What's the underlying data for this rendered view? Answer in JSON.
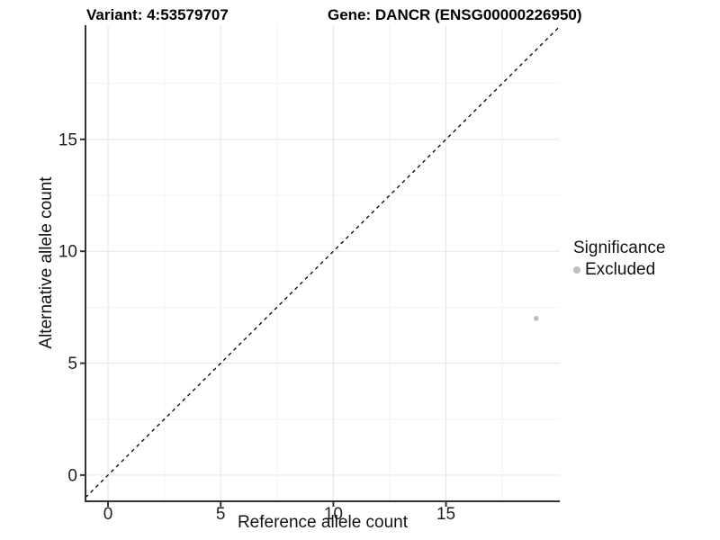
{
  "chart_data": {
    "type": "scatter",
    "title_left": "Variant: 4:53579707",
    "title_right": "Gene: DANCR (ENSG00000226950)",
    "xlabel": "Reference allele count",
    "ylabel": "Alternative allele count",
    "legend_title": "Significance",
    "legend_position": "right",
    "x_ticks": [
      0,
      5,
      10,
      15
    ],
    "y_ticks": [
      0,
      5,
      10,
      15
    ],
    "x_minor_ticks": [
      2.5,
      7.5,
      12.5,
      17.5
    ],
    "y_minor_ticks": [
      2.5,
      7.5,
      12.5,
      17.5
    ],
    "xlim": [
      -1.0,
      20.05
    ],
    "ylim": [
      -1.17,
      20.1
    ],
    "grid": "major and minor gridlines, light gray, white background",
    "reference_line": {
      "type": "identity",
      "slope": 1,
      "intercept": 0,
      "linetype": "dashed",
      "color": "#000000"
    },
    "series": [
      {
        "name": "Excluded",
        "color": "#bdbdbd",
        "point_size": 2.8,
        "points": [
          {
            "x": 19,
            "y": 7
          }
        ]
      }
    ]
  },
  "colors": {
    "axis_line": "#333333",
    "grid_major": "#e5e5e5",
    "grid_minor": "#f2f2f2",
    "tick_label": "#1f1f1f",
    "point": "#bdbdbd"
  }
}
